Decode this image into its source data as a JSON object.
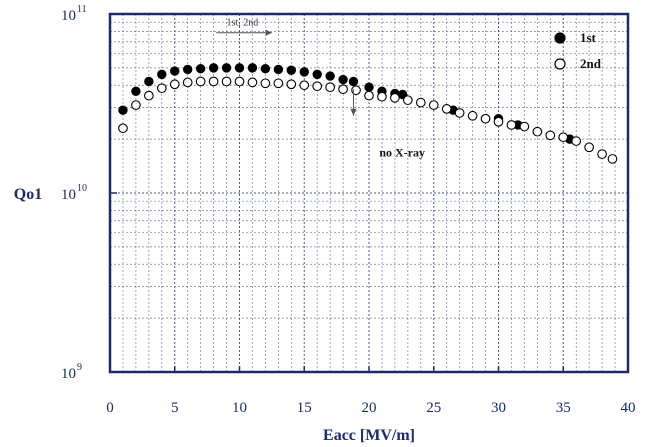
{
  "chart_data": {
    "type": "scatter",
    "xlabel": "Eacc [MV/m]",
    "ylabel": "Qo1",
    "xlim": [
      0,
      40
    ],
    "ylim": [
      1000000000.0,
      100000000000.0
    ],
    "yscale": "log",
    "x_ticks": [
      "0",
      "5",
      "10",
      "15",
      "20",
      "25",
      "30",
      "35",
      "40"
    ],
    "y_ticks": [
      {
        "base": "10",
        "exp": "9"
      },
      {
        "base": "10",
        "exp": "10"
      },
      {
        "base": "10",
        "exp": "11"
      }
    ],
    "grid": true,
    "legend_position": "top-right",
    "series": [
      {
        "name": "1st",
        "marker": "filled-circle",
        "color": "#000000",
        "points": [
          [
            1.0,
            29000000000.0
          ],
          [
            2.0,
            37000000000.0
          ],
          [
            3.0,
            42000000000.0
          ],
          [
            4.0,
            46000000000.0
          ],
          [
            5.0,
            48000000000.0
          ],
          [
            6.0,
            49000000000.0
          ],
          [
            7.0,
            49500000000.0
          ],
          [
            8.0,
            50000000000.0
          ],
          [
            9.0,
            50000000000.0
          ],
          [
            10.0,
            50000000000.0
          ],
          [
            11.0,
            50000000000.0
          ],
          [
            12.0,
            49500000000.0
          ],
          [
            13.0,
            49000000000.0
          ],
          [
            14.0,
            48500000000.0
          ],
          [
            15.0,
            47500000000.0
          ],
          [
            16.0,
            46000000000.0
          ],
          [
            17.0,
            45000000000.0
          ],
          [
            18.0,
            43000000000.0
          ],
          [
            18.8,
            42000000000.0
          ],
          [
            20.0,
            39000000000.0
          ],
          [
            21.0,
            37000000000.0
          ],
          [
            22.0,
            36000000000.0
          ],
          [
            22.6,
            35500000000.0
          ],
          [
            26.5,
            29000000000.0
          ],
          [
            30.0,
            26000000000.0
          ],
          [
            31.5,
            24000000000.0
          ],
          [
            35.5,
            20000000000.0
          ],
          [
            37.0,
            18000000000.0
          ]
        ]
      },
      {
        "name": "2nd",
        "marker": "open-circle",
        "color": "#000000",
        "points": [
          [
            1.0,
            23000000000.0
          ],
          [
            2.0,
            31000000000.0
          ],
          [
            3.0,
            35000000000.0
          ],
          [
            4.0,
            38500000000.0
          ],
          [
            5.0,
            40500000000.0
          ],
          [
            6.0,
            41500000000.0
          ],
          [
            7.0,
            42000000000.0
          ],
          [
            8.0,
            42000000000.0
          ],
          [
            9.0,
            42000000000.0
          ],
          [
            10.0,
            42000000000.0
          ],
          [
            11.0,
            41500000000.0
          ],
          [
            12.0,
            41000000000.0
          ],
          [
            13.0,
            41000000000.0
          ],
          [
            14.0,
            40500000000.0
          ],
          [
            15.0,
            40000000000.0
          ],
          [
            16.0,
            39500000000.0
          ],
          [
            17.0,
            39000000000.0
          ],
          [
            18.0,
            38000000000.0
          ],
          [
            19.0,
            37500000000.0
          ],
          [
            20.0,
            35000000000.0
          ],
          [
            21.0,
            34500000000.0
          ],
          [
            22.0,
            34000000000.0
          ],
          [
            23.0,
            33000000000.0
          ],
          [
            24.0,
            32000000000.0
          ],
          [
            25.0,
            31000000000.0
          ],
          [
            26.0,
            29500000000.0
          ],
          [
            27.0,
            28000000000.0
          ],
          [
            28.0,
            27000000000.0
          ],
          [
            29.0,
            26000000000.0
          ],
          [
            30.0,
            25000000000.0
          ],
          [
            31.0,
            24000000000.0
          ],
          [
            32.0,
            23500000000.0
          ],
          [
            33.0,
            22000000000.0
          ],
          [
            34.0,
            21000000000.0
          ],
          [
            35.0,
            20500000000.0
          ],
          [
            36.0,
            19500000000.0
          ],
          [
            37.0,
            18000000000.0
          ],
          [
            38.0,
            16500000000.0
          ],
          [
            38.8,
            15500000000.0
          ]
        ]
      }
    ],
    "annotations": [
      {
        "text": "1st, 2nd",
        "x": 9.0,
        "y": 86000000000.0,
        "arrow": "right",
        "arrow_from_x": 8.2,
        "arrow_to_x": 12.5
      },
      {
        "text": "no X-ray",
        "x": 20.8,
        "y": 16000000000.0
      },
      {
        "arrow": "down",
        "x": 18.8,
        "y_from": 38000000000.0,
        "y_to": 27000000000.0
      }
    ],
    "colors": {
      "axis": "#1a2a6c",
      "grid": "#3a4a8c",
      "text": "#1a2a6c"
    }
  }
}
